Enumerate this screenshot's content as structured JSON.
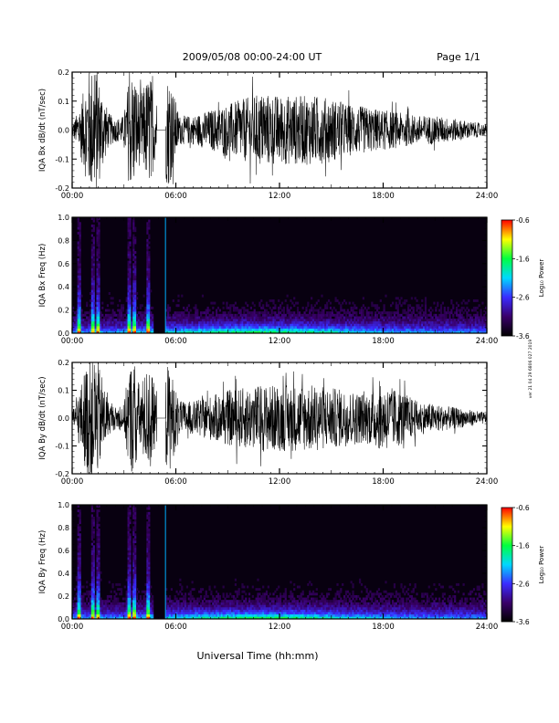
{
  "header": {
    "title": "2009/05/08  00:00-24:00 UT",
    "page": "Page 1/1"
  },
  "side_stamp": "ver 21 04 29 6806 027 2019",
  "xaxis": {
    "label": "Universal Time (hh:mm)",
    "ticks": [
      "00:00",
      "06:00",
      "12:00",
      "18:00",
      "24:00"
    ],
    "range_hours": [
      0,
      24
    ]
  },
  "chart_data": [
    {
      "type": "line",
      "ylabel": "IQA Bx dB/dt (nT/sec)",
      "ylim": [
        -0.2,
        0.2
      ],
      "yticks": [
        "0.2",
        "0.1",
        "0.0",
        "-0.1",
        "-0.2"
      ],
      "ytick_values": [
        0.2,
        0.1,
        0.0,
        -0.1,
        -0.2
      ],
      "series_color": "#000000",
      "data_gap_hours": [
        4.9,
        5.4
      ],
      "amplitude_envelope": {
        "x_hours": [
          0,
          0.3,
          0.6,
          0.9,
          1.1,
          1.4,
          1.7,
          2.1,
          2.5,
          3.0,
          3.3,
          3.6,
          3.9,
          4.2,
          4.5,
          4.8,
          5.6,
          6.2,
          7.0,
          8.0,
          9.0,
          10.0,
          11.0,
          12.0,
          13.0,
          14.0,
          15.0,
          16.0,
          17.0,
          18.0,
          19.0,
          20.0,
          21.0,
          22.0,
          23.0,
          24.0
        ],
        "amplitude": [
          0.02,
          0.06,
          0.12,
          0.2,
          0.22,
          0.22,
          0.15,
          0.06,
          0.04,
          0.05,
          0.2,
          0.2,
          0.12,
          0.16,
          0.2,
          0.1,
          0.2,
          0.05,
          0.05,
          0.07,
          0.09,
          0.11,
          0.13,
          0.12,
          0.12,
          0.12,
          0.11,
          0.09,
          0.08,
          0.07,
          0.06,
          0.05,
          0.05,
          0.04,
          0.03,
          0.02
        ]
      }
    },
    {
      "type": "heatmap",
      "ylabel": "IQA Bx Freq (Hz)",
      "ylim": [
        0.0,
        1.0
      ],
      "yticks": [
        "1.0",
        "0.8",
        "0.6",
        "0.4",
        "0.2",
        "0.0"
      ],
      "ytick_values": [
        1.0,
        0.8,
        0.6,
        0.4,
        0.2,
        0.0
      ],
      "colorbar": {
        "label": "Log₁₀ Power",
        "ticks": [
          "-0.6",
          "-1.6",
          "-2.6",
          "-3.6"
        ],
        "tick_values": [
          -0.6,
          -1.6,
          -2.6,
          -3.6
        ],
        "range": [
          -3.6,
          -0.6
        ],
        "colors": [
          "#000000",
          "#3a006a",
          "#3a2cff",
          "#00d8ff",
          "#00ff40",
          "#ffff00",
          "#ff0000"
        ]
      },
      "burst_hours": [
        0.4,
        1.2,
        1.5,
        3.3,
        3.6,
        4.4
      ],
      "data_gap_hours": [
        4.7,
        5.4
      ]
    },
    {
      "type": "line",
      "ylabel": "IQA By dB/dt (nT/sec)",
      "ylim": [
        -0.2,
        0.2
      ],
      "yticks": [
        "0.2",
        "0.1",
        "0.0",
        "-0.1",
        "-0.2"
      ],
      "ytick_values": [
        0.2,
        0.1,
        0.0,
        -0.1,
        -0.2
      ],
      "series_color": "#000000",
      "data_gap_hours": [
        4.9,
        5.4
      ],
      "amplitude_envelope": {
        "x_hours": [
          0,
          0.3,
          0.6,
          0.9,
          1.1,
          1.4,
          1.7,
          2.1,
          2.5,
          3.0,
          3.3,
          3.6,
          3.9,
          4.2,
          4.5,
          4.8,
          5.6,
          6.2,
          7.0,
          8.0,
          9.0,
          10.0,
          11.0,
          12.0,
          13.0,
          14.0,
          15.0,
          16.0,
          17.0,
          18.0,
          19.0,
          20.0,
          21.0,
          22.0,
          23.0,
          24.0
        ],
        "amplitude": [
          0.02,
          0.08,
          0.14,
          0.22,
          0.22,
          0.22,
          0.16,
          0.06,
          0.04,
          0.05,
          0.2,
          0.2,
          0.12,
          0.16,
          0.2,
          0.1,
          0.2,
          0.06,
          0.06,
          0.08,
          0.1,
          0.11,
          0.12,
          0.12,
          0.12,
          0.12,
          0.11,
          0.1,
          0.09,
          0.12,
          0.1,
          0.06,
          0.05,
          0.04,
          0.03,
          0.02
        ]
      }
    },
    {
      "type": "heatmap",
      "ylabel": "IQA By Freq (Hz)",
      "ylim": [
        0.0,
        1.0
      ],
      "yticks": [
        "1.0",
        "0.8",
        "0.6",
        "0.4",
        "0.2",
        "0.0"
      ],
      "ytick_values": [
        1.0,
        0.8,
        0.6,
        0.4,
        0.2,
        0.0
      ],
      "colorbar": {
        "label": "Log₁₀ Power",
        "ticks": [
          "-0.6",
          "-1.6",
          "-2.6",
          "-3.6"
        ],
        "tick_values": [
          -0.6,
          -1.6,
          -2.6,
          -3.6
        ],
        "range": [
          -3.6,
          -0.6
        ],
        "colors": [
          "#000000",
          "#3a006a",
          "#3a2cff",
          "#00d8ff",
          "#00ff40",
          "#ffff00",
          "#ff0000"
        ]
      },
      "burst_hours": [
        0.4,
        1.2,
        1.5,
        3.3,
        3.6,
        4.4
      ],
      "data_gap_hours": [
        4.7,
        5.4
      ]
    }
  ]
}
